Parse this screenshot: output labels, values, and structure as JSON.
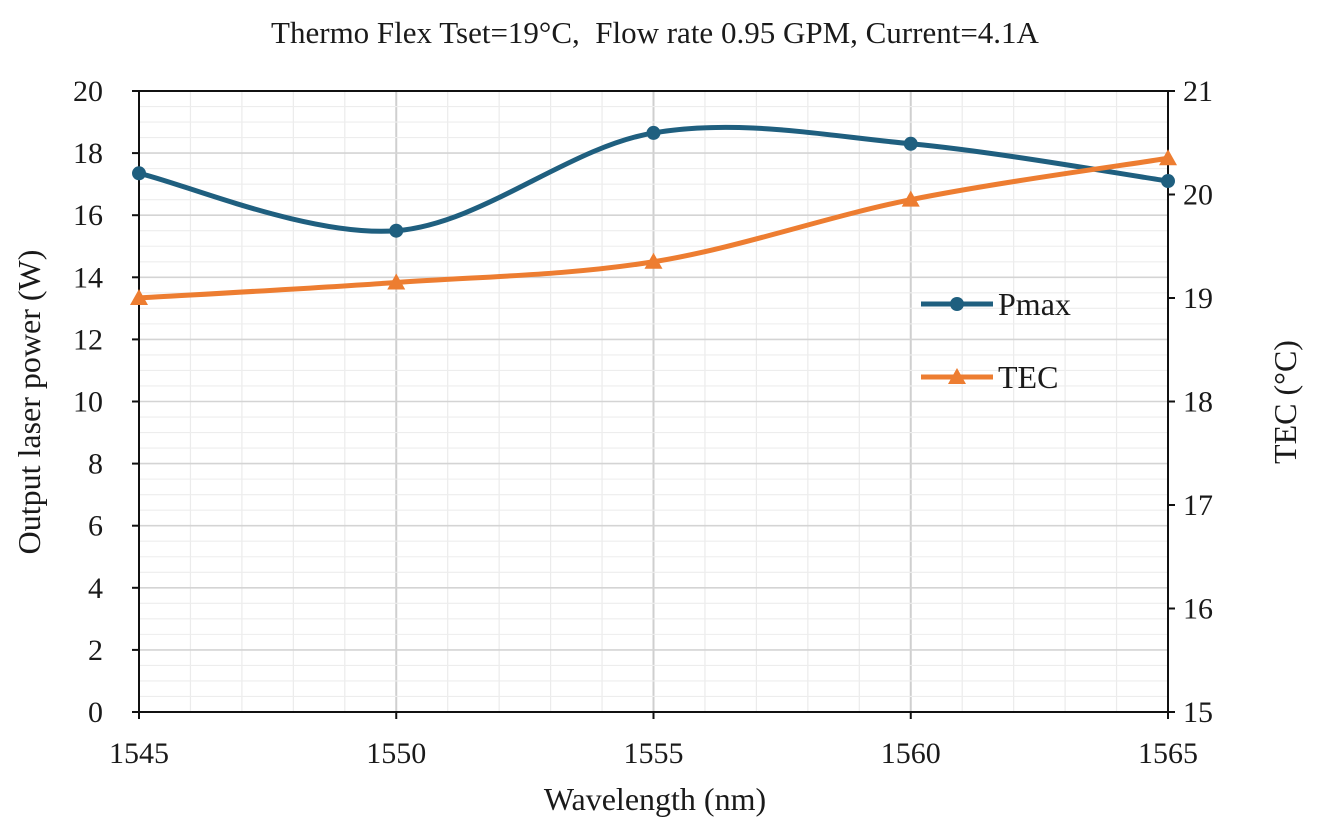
{
  "chart_data": {
    "type": "line",
    "title": "Thermo Flex Tset=19°C,  Flow rate 0.95 GPM, Current=4.1A",
    "xlabel": "Wavelength (nm)",
    "ylabel": "Output laser power (W)",
    "y2label": "TEC (°C)",
    "xlim": [
      1545,
      1565
    ],
    "ylim": [
      0,
      20
    ],
    "y2lim": [
      15,
      21
    ],
    "x_ticks": [
      "1545",
      "1550",
      "1555",
      "1560",
      "1565"
    ],
    "y_ticks": [
      "0",
      "2",
      "4",
      "6",
      "8",
      "10",
      "12",
      "14",
      "16",
      "18",
      "20"
    ],
    "y2_ticks": [
      "15",
      "16",
      "17",
      "18",
      "19",
      "20",
      "21"
    ],
    "x": [
      1545,
      1550,
      1555,
      1560,
      1565
    ],
    "series": [
      {
        "name": "Pmax",
        "axis": "left",
        "values": [
          17.35,
          15.5,
          18.65,
          18.3,
          17.1
        ],
        "color": "#1f5f7f",
        "marker": "circle",
        "smooth": true
      },
      {
        "name": "TEC",
        "axis": "right",
        "values": [
          19.0,
          19.15,
          19.35,
          19.95,
          20.35
        ],
        "color": "#ed7d31",
        "marker": "triangle",
        "smooth": true
      }
    ],
    "grid": "major and minor",
    "legend_position": "right-middle"
  }
}
